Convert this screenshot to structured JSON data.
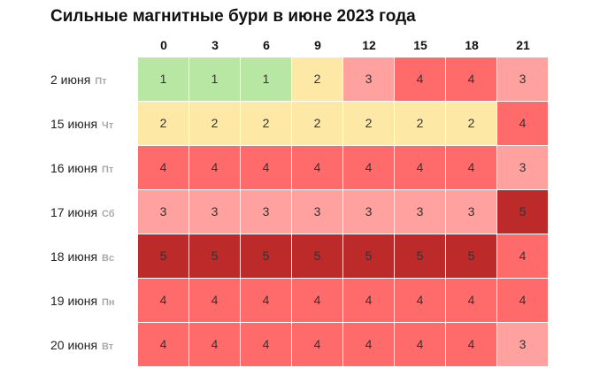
{
  "chart_data": {
    "type": "heatmap",
    "title": "Сильные магнитные бури в июне 2023 года",
    "hours": [
      "0",
      "3",
      "6",
      "9",
      "12",
      "15",
      "18",
      "21"
    ],
    "rows": [
      {
        "date": "2 июня",
        "weekday": "Пт",
        "values": [
          1,
          1,
          1,
          2,
          3,
          4,
          4,
          3
        ]
      },
      {
        "date": "15 июня",
        "weekday": "Чт",
        "values": [
          2,
          2,
          2,
          2,
          2,
          2,
          2,
          4
        ]
      },
      {
        "date": "16 июня",
        "weekday": "Пт",
        "values": [
          4,
          4,
          4,
          4,
          4,
          4,
          4,
          3
        ]
      },
      {
        "date": "17 июня",
        "weekday": "Сб",
        "values": [
          3,
          3,
          3,
          3,
          3,
          3,
          3,
          5
        ]
      },
      {
        "date": "18 июня",
        "weekday": "Вс",
        "values": [
          5,
          5,
          5,
          5,
          5,
          5,
          5,
          4
        ]
      },
      {
        "date": "19 июня",
        "weekday": "Пн",
        "values": [
          4,
          4,
          4,
          4,
          4,
          4,
          4,
          4
        ]
      },
      {
        "date": "20 июня",
        "weekday": "Вт",
        "values": [
          4,
          4,
          4,
          4,
          4,
          4,
          4,
          3
        ]
      }
    ],
    "color_scale": {
      "1": "#b8e6a3",
      "2": "#fde8a6",
      "3": "#fea19f",
      "4": "#ff6b6b",
      "5": "#bc2a2a"
    }
  }
}
